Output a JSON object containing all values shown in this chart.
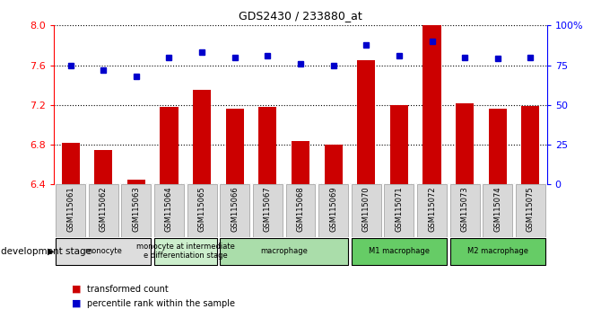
{
  "title": "GDS2430 / 233880_at",
  "samples": [
    "GSM115061",
    "GSM115062",
    "GSM115063",
    "GSM115064",
    "GSM115065",
    "GSM115066",
    "GSM115067",
    "GSM115068",
    "GSM115069",
    "GSM115070",
    "GSM115071",
    "GSM115072",
    "GSM115073",
    "GSM115074",
    "GSM115075"
  ],
  "bar_values": [
    6.82,
    6.75,
    6.45,
    7.18,
    7.35,
    7.16,
    7.18,
    6.84,
    6.8,
    7.65,
    7.2,
    8.0,
    7.22,
    7.16,
    7.19
  ],
  "dot_values": [
    75,
    72,
    68,
    80,
    83,
    80,
    81,
    76,
    75,
    88,
    81,
    90,
    80,
    79,
    80
  ],
  "ylim_left": [
    6.4,
    8.0
  ],
  "ylim_right": [
    0,
    100
  ],
  "yticks_left": [
    6.4,
    6.8,
    7.2,
    7.6,
    8.0
  ],
  "yticks_right": [
    0,
    25,
    50,
    75,
    100
  ],
  "ytick_labels_right": [
    "0",
    "25",
    "50",
    "75",
    "100%"
  ],
  "bar_color": "#cc0000",
  "dot_color": "#0000cc",
  "groups": [
    {
      "label": "monocyte",
      "start": 0,
      "end": 2,
      "color": "#dddddd"
    },
    {
      "label": "monocyte at intermediate\ne differentiation stage",
      "start": 3,
      "end": 4,
      "color": "#cceecc"
    },
    {
      "label": "macrophage",
      "start": 5,
      "end": 8,
      "color": "#aaddaa"
    },
    {
      "label": "M1 macrophage",
      "start": 9,
      "end": 11,
      "color": "#66cc66"
    },
    {
      "label": "M2 macrophage",
      "start": 12,
      "end": 14,
      "color": "#66cc66"
    }
  ],
  "legend_items": [
    "transformed count",
    "percentile rank within the sample"
  ],
  "legend_colors": [
    "#cc0000",
    "#0000cc"
  ],
  "development_stage_label": "development stage"
}
